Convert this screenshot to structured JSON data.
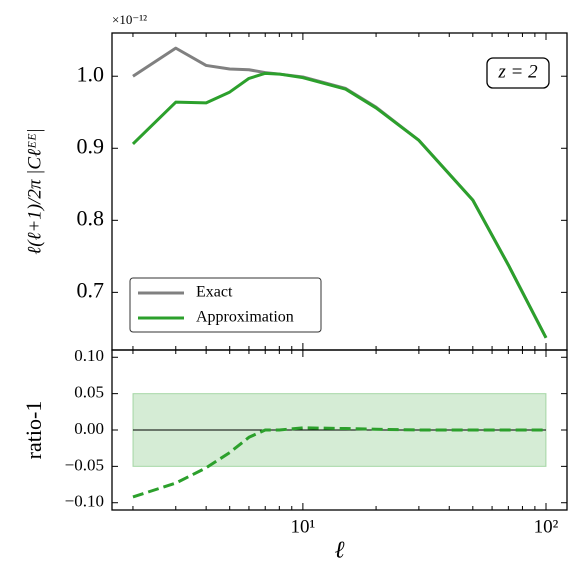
{
  "chart_data": [
    {
      "type": "line",
      "offset_label": "×10⁻¹²",
      "ylabel": "ℓ(ℓ+1)/2π |Cℓᴱᴱ|",
      "annotation": "z = 2",
      "xscale": "log",
      "xlim": [
        1.64,
        122
      ],
      "ylim": [
        0.62,
        1.06
      ],
      "yticks": [
        0.7,
        0.8,
        0.9,
        {
          "value": 1.0,
          "label": "1.0"
        }
      ],
      "xticks": [
        10,
        100
      ],
      "show_xticklabels": false,
      "xminorticks": [
        2,
        3,
        4,
        5,
        6,
        7,
        8,
        9,
        20,
        30,
        40,
        50,
        60,
        70,
        80,
        90
      ],
      "legend": "lower left",
      "x": [
        2,
        3,
        4,
        5,
        6,
        7,
        8,
        10,
        15,
        20,
        30,
        50,
        70,
        100
      ],
      "series": [
        {
          "name": "Exact",
          "color": "#808080",
          "values": [
            1.0,
            1.039,
            1.015,
            1.01,
            1.009,
            1.005,
            1.003,
            0.999,
            0.983,
            0.957,
            0.911,
            0.828,
            0.738,
            0.637
          ]
        },
        {
          "name": "Approximation",
          "color": "#2ca02c",
          "values": [
            0.906,
            0.964,
            0.963,
            0.978,
            0.997,
            1.004,
            1.003,
            0.998,
            0.982,
            0.956,
            0.911,
            0.828,
            0.738,
            0.637
          ]
        }
      ]
    },
    {
      "type": "line",
      "ylabel": "ratio-1",
      "xlabel": "ℓ",
      "xscale": "log",
      "xlim": [
        1.64,
        122
      ],
      "ylim": [
        -0.11,
        0.11
      ],
      "yticks": [
        {
          "value": -0.1,
          "label": "−0.10"
        },
        {
          "value": -0.05,
          "label": "−0.05"
        },
        {
          "value": 0,
          "label": "0.00"
        },
        {
          "value": 0.05,
          "label": "0.05"
        },
        {
          "value": 0.1,
          "label": "0.10"
        }
      ],
      "xticks": [
        {
          "value": 10,
          "label": "10¹"
        },
        {
          "value": 100,
          "label": "10²"
        }
      ],
      "show_xticklabels": true,
      "xminorticks": [
        2,
        3,
        4,
        5,
        6,
        7,
        8,
        9,
        20,
        30,
        40,
        50,
        60,
        70,
        80,
        90
      ],
      "band": [
        -0.05,
        0.05
      ],
      "band_color": "#2ca02c",
      "hline": 0,
      "x": [
        2,
        3,
        4,
        5,
        6,
        7,
        8,
        10,
        15,
        20,
        30,
        50,
        70,
        100
      ],
      "series": [
        {
          "color": "#2ca02c",
          "linestyle": "dashed",
          "values": [
            -0.092,
            -0.073,
            -0.052,
            -0.031,
            -0.01,
            0.0,
            0.0,
            0.003,
            0.002,
            0.001,
            0.0,
            0.0,
            0.0,
            0.0
          ]
        }
      ]
    }
  ]
}
